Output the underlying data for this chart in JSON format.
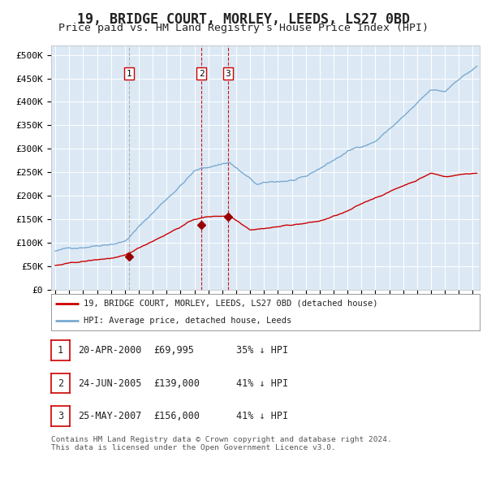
{
  "title": "19, BRIDGE COURT, MORLEY, LEEDS, LS27 0BD",
  "subtitle": "Price paid vs. HM Land Registry's House Price Index (HPI)",
  "title_fontsize": 12,
  "subtitle_fontsize": 9.5,
  "bg_color": "#dce9f5",
  "grid_color": "#ffffff",
  "sale_year_nums": [
    2000.3,
    2005.5,
    2007.42
  ],
  "sale_prices": [
    69995,
    139000,
    156000
  ],
  "sale_labels": [
    "1",
    "2",
    "3"
  ],
  "sale_vline_colors": [
    "#aaaaaa",
    "#cc0000",
    "#cc0000"
  ],
  "legend_entries": [
    "19, BRIDGE COURT, MORLEY, LEEDS, LS27 0BD (detached house)",
    "HPI: Average price, detached house, Leeds"
  ],
  "legend_line_colors": [
    "#cc0000",
    "#7aaad0"
  ],
  "table_rows": [
    [
      "1",
      "20-APR-2000",
      "£69,995",
      "35% ↓ HPI"
    ],
    [
      "2",
      "24-JUN-2005",
      "£139,000",
      "41% ↓ HPI"
    ],
    [
      "3",
      "25-MAY-2007",
      "£156,000",
      "41% ↓ HPI"
    ]
  ],
  "footer_text": "Contains HM Land Registry data © Crown copyright and database right 2024.\nThis data is licensed under the Open Government Licence v3.0.",
  "ylabel_ticks": [
    "£0",
    "£50K",
    "£100K",
    "£150K",
    "£200K",
    "£250K",
    "£300K",
    "£350K",
    "£400K",
    "£450K",
    "£500K"
  ],
  "ytick_values": [
    0,
    50000,
    100000,
    150000,
    200000,
    250000,
    300000,
    350000,
    400000,
    450000,
    500000
  ],
  "ylim": [
    0,
    520000
  ],
  "xlim_start": 1994.7,
  "xlim_end": 2025.5
}
